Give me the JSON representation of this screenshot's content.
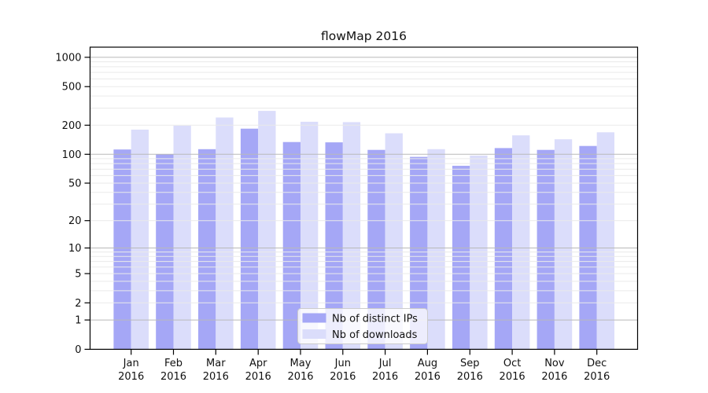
{
  "chart_data": {
    "type": "bar",
    "title": "flowMap 2016",
    "categories": [
      "Jan",
      "Feb",
      "Mar",
      "Apr",
      "May",
      "Jun",
      "Jul",
      "Aug",
      "Sep",
      "Oct",
      "Nov",
      "Dec"
    ],
    "year_label": "2016",
    "series": [
      {
        "name": "Nb of distinct IPs",
        "color": "#a5a7f6",
        "values": [
          112,
          100,
          113,
          184,
          134,
          133,
          111,
          94,
          76,
          116,
          111,
          122
        ]
      },
      {
        "name": "Nb of downloads",
        "color": "#dbddfb",
        "values": [
          180,
          198,
          240,
          281,
          217,
          215,
          165,
          113,
          97,
          157,
          143,
          169
        ]
      }
    ],
    "yscale": "log1p",
    "yticks": [
      0,
      1,
      2,
      5,
      10,
      20,
      50,
      100,
      200,
      500,
      1000
    ],
    "major_grid_values": [
      1,
      10,
      100,
      1000
    ],
    "ylim": [
      0,
      1390
    ],
    "grid": true,
    "legend_position": "lower-center",
    "colors": {
      "background": "#ffffff",
      "axis": "#000000",
      "major_grid": "#b9b9b9",
      "minor_grid": "#eaeaea",
      "legend_border": "#cccccc",
      "text": "#111111"
    }
  }
}
